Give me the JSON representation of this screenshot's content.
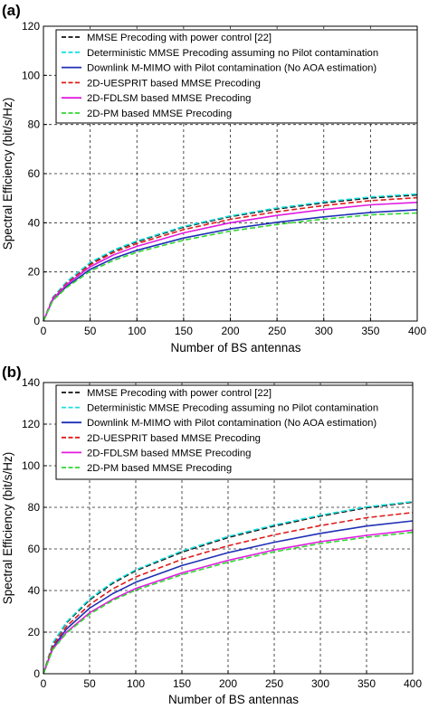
{
  "panels": [
    {
      "label": "(a)"
    },
    {
      "label": "(b)"
    }
  ],
  "colors": {
    "mmse_power": "#111111",
    "deterministic": "#19e0e0",
    "downlink": "#1f2fb5",
    "uesprit": "#e01b1b",
    "fdlsm": "#e01be0",
    "pm": "#33d633",
    "grid": "#222222"
  },
  "chart_data": [
    {
      "type": "line",
      "xlabel": "Number of BS antennas",
      "ylabel": "Spectral Efficiency (bit/s/Hz)",
      "xlim": [
        0,
        400
      ],
      "ylim": [
        0,
        120
      ],
      "xticks": [
        "0",
        "50",
        "100",
        "150",
        "200",
        "250",
        "300",
        "350",
        "400"
      ],
      "yticks": [
        "0",
        "20",
        "40",
        "60",
        "80",
        "100",
        "120"
      ],
      "grid": true,
      "legend_position": "top",
      "x": [
        0,
        10,
        25,
        50,
        75,
        100,
        150,
        200,
        250,
        300,
        350,
        400
      ],
      "series": [
        {
          "name": "MMSE Precoding with power control [22]",
          "color_key": "mmse_power",
          "dash": "dash",
          "values": [
            0,
            9.5,
            15.8,
            23.5,
            28.6,
            32.3,
            38.2,
            42.5,
            45.6,
            48.1,
            50.1,
            51.3
          ]
        },
        {
          "name": "Deterministic MMSE Precoding assuming no Pilot contamination",
          "color_key": "deterministic",
          "dash": "dash",
          "values": [
            0,
            9.7,
            16.1,
            23.8,
            28.9,
            32.6,
            38.5,
            42.8,
            46.0,
            48.5,
            50.5,
            51.7
          ]
        },
        {
          "name": "Downlink M-MIMO with Pilot contamination (No AOA estimation)",
          "color_key": "downlink",
          "dash": "solid",
          "values": [
            0,
            8.6,
            14.2,
            21.0,
            25.5,
            28.8,
            33.8,
            37.5,
            40.2,
            42.4,
            44.2,
            45.3
          ]
        },
        {
          "name": "2D-UESPRIT based MMSE Precoding",
          "color_key": "uesprit",
          "dash": "dash",
          "values": [
            0,
            9.3,
            15.4,
            22.9,
            27.9,
            31.5,
            37.2,
            41.4,
            44.5,
            47.0,
            49.0,
            50.2
          ]
        },
        {
          "name": "2D-FDLSM based MMSE Precoding",
          "color_key": "fdlsm",
          "dash": "solid",
          "values": [
            0,
            9.0,
            14.9,
            22.1,
            26.9,
            30.4,
            35.9,
            40.0,
            43.0,
            45.4,
            47.3,
            48.3
          ]
        },
        {
          "name": "2D-PM based MMSE Precoding",
          "color_key": "pm",
          "dash": "dash",
          "values": [
            0,
            8.3,
            13.7,
            20.3,
            24.7,
            28.0,
            32.9,
            36.6,
            39.3,
            41.5,
            43.2,
            44.0
          ]
        }
      ]
    },
    {
      "type": "line",
      "xlabel": "Number of BS antennas",
      "ylabel": "Spectral Efficiency (bit/s/Hz)",
      "xlim": [
        0,
        400
      ],
      "ylim": [
        0,
        140
      ],
      "xticks": [
        "0",
        "50",
        "100",
        "150",
        "200",
        "250",
        "300",
        "350",
        "400"
      ],
      "yticks": [
        "0",
        "20",
        "40",
        "60",
        "80",
        "100",
        "120",
        "140"
      ],
      "grid": true,
      "legend_position": "top",
      "x": [
        0,
        10,
        25,
        50,
        75,
        100,
        150,
        200,
        250,
        300,
        350,
        400
      ],
      "series": [
        {
          "name": "MMSE Precoding with power control [22]",
          "color_key": "mmse_power",
          "dash": "dash",
          "values": [
            0,
            14.5,
            24.5,
            35.5,
            43.5,
            49.5,
            58.5,
            65.5,
            71.0,
            75.8,
            79.8,
            82.5
          ]
        },
        {
          "name": "Deterministic MMSE Precoding assuming no Pilot contamination",
          "color_key": "deterministic",
          "dash": "dash",
          "values": [
            0,
            14.8,
            24.9,
            36.0,
            44.0,
            50.0,
            59.0,
            66.0,
            71.5,
            76.2,
            80.2,
            82.8
          ]
        },
        {
          "name": "Downlink M-MIMO with Pilot contamination (No AOA estimation)",
          "color_key": "downlink",
          "dash": "solid",
          "values": [
            0,
            12.5,
            21.5,
            31.5,
            38.5,
            44.0,
            52.0,
            58.2,
            63.2,
            67.5,
            71.0,
            73.5
          ]
        },
        {
          "name": "2D-UESPRIT based MMSE Precoding",
          "color_key": "uesprit",
          "dash": "dash",
          "values": [
            0,
            13.5,
            22.8,
            33.2,
            40.8,
            46.5,
            55.0,
            61.5,
            66.8,
            71.2,
            75.0,
            77.5
          ]
        },
        {
          "name": "2D-FDLSM based MMSE Precoding",
          "color_key": "fdlsm",
          "dash": "solid",
          "values": [
            0,
            11.8,
            20.0,
            29.3,
            35.8,
            41.0,
            48.5,
            54.5,
            59.5,
            63.5,
            66.5,
            69.0
          ]
        },
        {
          "name": "2D-PM based MMSE Precoding",
          "color_key": "pm",
          "dash": "dash",
          "values": [
            0,
            11.5,
            19.5,
            28.6,
            35.2,
            40.2,
            47.6,
            53.6,
            58.6,
            62.6,
            65.6,
            68.0
          ]
        }
      ]
    }
  ]
}
